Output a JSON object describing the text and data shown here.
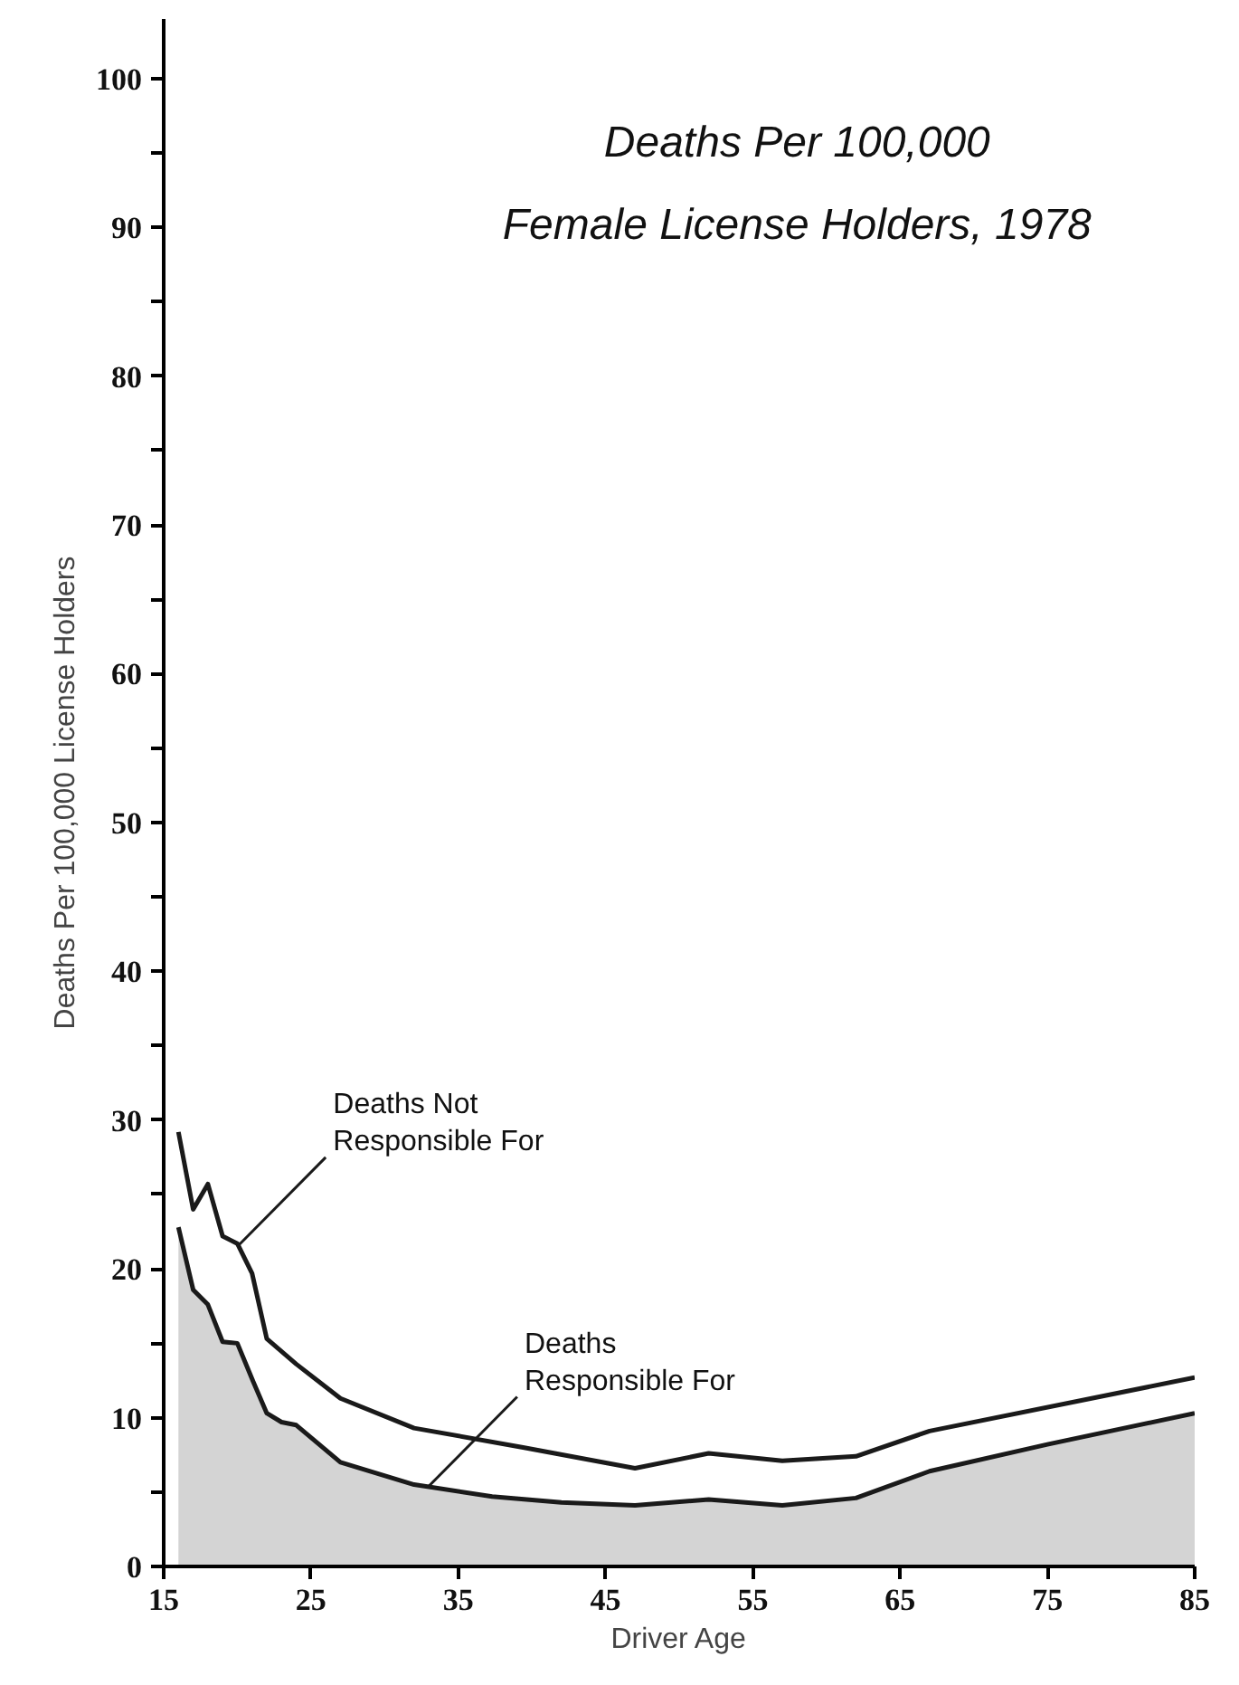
{
  "chart_data": {
    "type": "line",
    "title": "Deaths Per 100,000\nFemale License Holders, 1978",
    "xlabel": "Driver Age",
    "ylabel": "Deaths Per 100,000 License Holders",
    "series": [
      {
        "type": "area",
        "color": "#d4d4d4",
        "x": [
          16,
          17,
          18,
          19,
          20,
          21,
          22,
          23,
          24,
          27,
          32,
          37.3,
          42,
          47,
          52,
          57,
          62,
          67,
          75,
          85
        ],
        "values": [
          22.8,
          18.6,
          17.6,
          15.1,
          15.0,
          12.6,
          10.3,
          9.7,
          9.5,
          7.0,
          5.5,
          4.7,
          4.3,
          4.1,
          4.5,
          4.1,
          4.6,
          6.4,
          8.2,
          10.3
        ]
      },
      {
        "color": "#1a1a1a",
        "x": [
          16,
          17,
          18,
          19,
          20,
          21,
          22,
          24,
          27,
          32,
          39.4,
          47,
          52,
          57,
          62,
          67,
          85
        ],
        "values": [
          29.2,
          24.0,
          25.7,
          22.2,
          21.7,
          19.7,
          15.3,
          13.6,
          11.3,
          9.3,
          8.0,
          6.6,
          7.6,
          7.1,
          7.4,
          9.1,
          12.7
        ]
      }
    ],
    "annotations": [
      {
        "text": "Deaths Not\nResponsible For",
        "x": 20,
        "y": 21.5
      },
      {
        "text": "Deaths\nResponsible For",
        "x": 33,
        "y": 5.4
      }
    ],
    "xlim": [
      15,
      85
    ],
    "xticks": [
      15,
      25,
      35,
      45,
      55,
      65,
      75,
      85
    ],
    "ylim": [
      0,
      104
    ],
    "yticks": [
      0,
      {
        "value": 5,
        "label": null
      },
      10,
      {
        "value": 15,
        "label": null
      },
      20,
      {
        "value": 25,
        "label": null
      },
      30,
      {
        "value": 35,
        "label": null
      },
      40,
      {
        "value": 45,
        "label": null
      },
      50,
      {
        "value": 55,
        "label": null
      },
      60,
      {
        "value": 65,
        "label": null
      },
      70,
      {
        "value": 75,
        "label": null
      },
      80,
      {
        "value": 85,
        "label": null
      },
      90,
      {
        "value": 95,
        "label": null
      },
      100
    ],
    "grid": false
  }
}
